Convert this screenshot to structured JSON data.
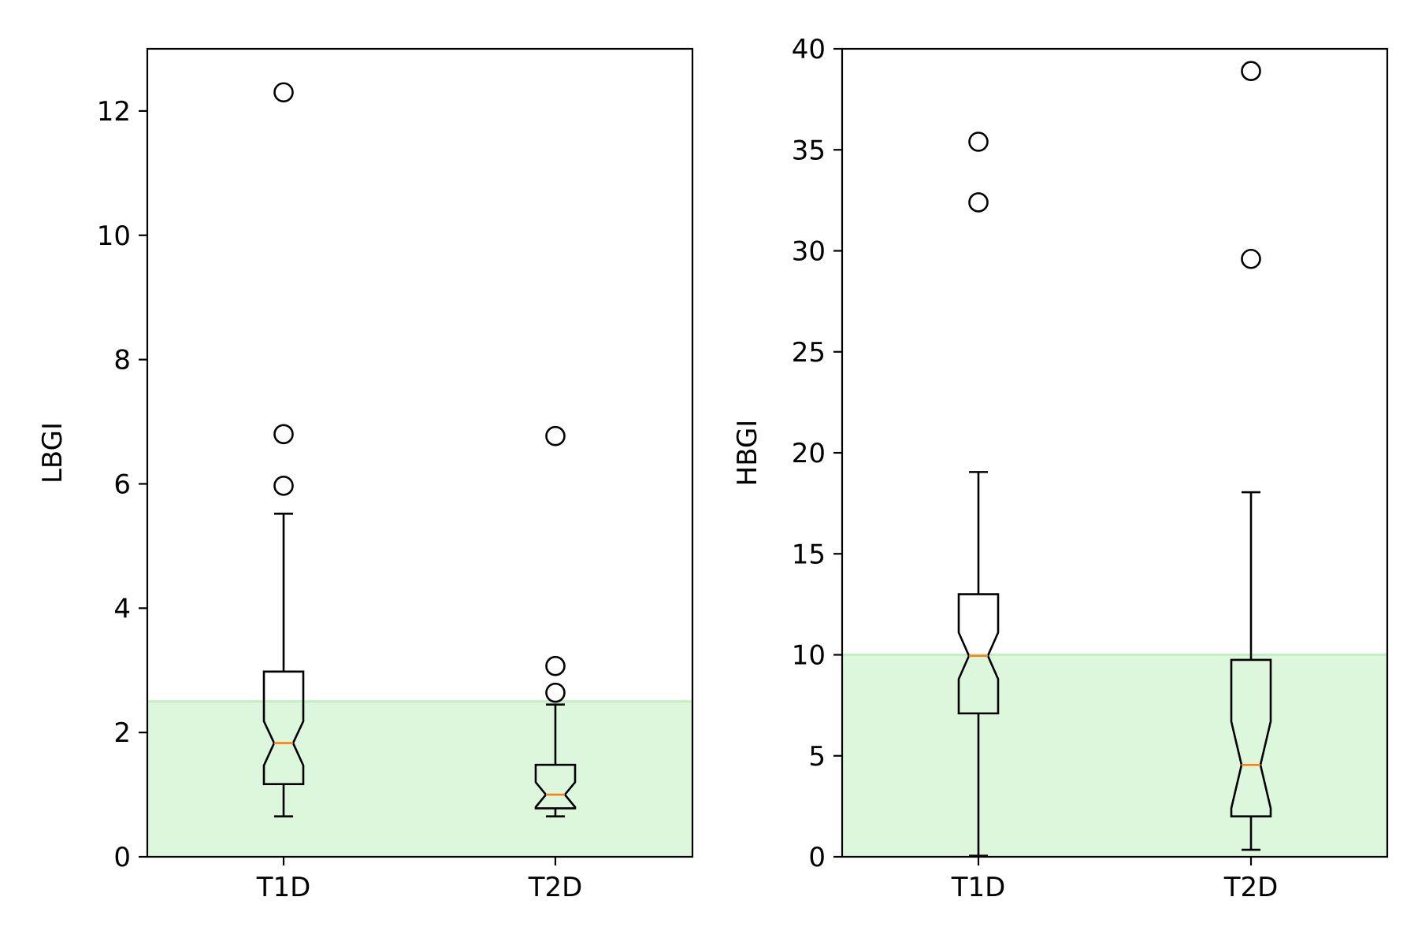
{
  "chart_data": [
    {
      "type": "boxplot",
      "categories": [
        "T1D",
        "T2D"
      ],
      "ylabel": "LBGI",
      "xlabel": "",
      "ylim": [
        0,
        13
      ],
      "yticks": [
        "0",
        "2",
        "4",
        "6",
        "8",
        "10",
        "12"
      ],
      "shaded_band": {
        "from": 0,
        "to": 2.5,
        "color": "#dcf7dc"
      },
      "series": [
        {
          "category": "T1D",
          "whisker_low": 0.65,
          "q1": 1.17,
          "median": 1.83,
          "q3": 2.98,
          "whisker_high": 5.52,
          "notch_low": 1.47,
          "notch_high": 2.18,
          "outliers": [
            12.3,
            6.8,
            5.97
          ]
        },
        {
          "category": "T2D",
          "whisker_low": 0.65,
          "q1": 0.78,
          "median": 1.0,
          "q3": 1.48,
          "whisker_high": 2.45,
          "notch_low": 0.8,
          "notch_high": 1.2,
          "outliers": [
            6.77,
            3.07,
            2.64
          ]
        }
      ]
    },
    {
      "type": "boxplot",
      "categories": [
        "T1D",
        "T2D"
      ],
      "ylabel": "HBGI",
      "xlabel": "",
      "ylim": [
        0,
        40
      ],
      "yticks": [
        "0",
        "5",
        "10",
        "15",
        "20",
        "25",
        "30",
        "35",
        "40"
      ],
      "shaded_band": {
        "from": 0,
        "to": 10,
        "color": "#dcf7dc"
      },
      "series": [
        {
          "category": "T1D",
          "whisker_low": 0.05,
          "q1": 7.1,
          "median": 9.95,
          "q3": 13.0,
          "whisker_high": 19.05,
          "notch_low": 8.8,
          "notch_high": 11.1,
          "outliers": [
            35.4,
            32.4
          ]
        },
        {
          "category": "T2D",
          "whisker_low": 0.35,
          "q1": 2.0,
          "median": 4.55,
          "q3": 9.75,
          "whisker_high": 18.05,
          "notch_low": 2.4,
          "notch_high": 6.7,
          "outliers": [
            38.9,
            29.6
          ]
        }
      ]
    }
  ],
  "colors": {
    "median": "#ff7f0e",
    "box": "#000000",
    "band": "#dcf7dc",
    "band_edge": "#c4eec4"
  }
}
